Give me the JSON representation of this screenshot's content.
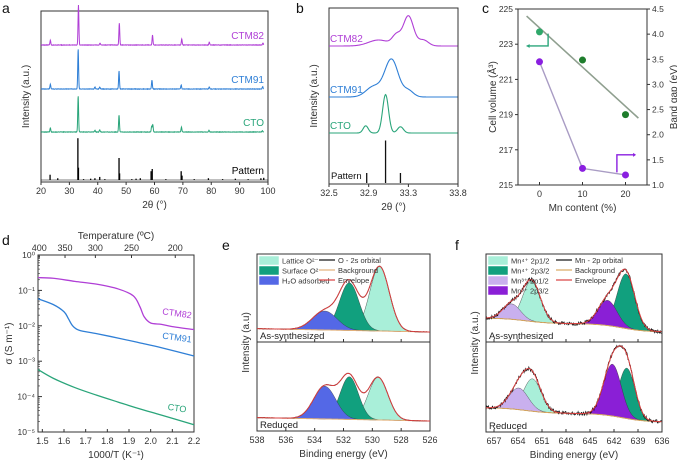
{
  "figure": {
    "panel_labels": [
      "a",
      "b",
      "c",
      "d",
      "e",
      "f"
    ]
  },
  "chart_data": [
    {
      "panel": "a",
      "type": "line",
      "title": "",
      "xlabel": "2θ (°)",
      "ylabel": "Intensity (a.u.)",
      "xlim": [
        20,
        100
      ],
      "xticks": [
        20,
        30,
        40,
        50,
        60,
        70,
        80,
        90,
        100
      ],
      "series": [
        {
          "name": "CTM82",
          "color": "#b03fd6",
          "offset": 3,
          "peaks": [
            [
              23.3,
              0.12
            ],
            [
              33.2,
              1.0
            ],
            [
              40.8,
              0.05
            ],
            [
              47.6,
              0.55
            ],
            [
              59.3,
              0.25
            ],
            [
              69.6,
              0.15
            ],
            [
              79.3,
              0.07
            ],
            [
              98.2,
              0.05
            ]
          ]
        },
        {
          "name": "CTM91",
          "color": "#2f7fd6",
          "offset": 2,
          "peaks": [
            [
              23.3,
              0.12
            ],
            [
              33.1,
              1.0
            ],
            [
              39.0,
              0.05
            ],
            [
              40.7,
              0.05
            ],
            [
              47.5,
              0.45
            ],
            [
              59.1,
              0.22
            ],
            [
              69.4,
              0.1
            ],
            [
              79.3,
              0.05
            ],
            [
              98.1,
              0.06
            ]
          ]
        },
        {
          "name": "CTO",
          "color": "#2aa57a",
          "offset": 1,
          "peaks": [
            [
              23.3,
              0.1
            ],
            [
              33.1,
              0.9
            ],
            [
              39.0,
              0.04
            ],
            [
              40.7,
              0.05
            ],
            [
              47.5,
              0.42
            ],
            [
              59.0,
              0.14
            ],
            [
              59.4,
              0.18
            ],
            [
              69.5,
              0.12
            ],
            [
              79.2,
              0.04
            ],
            [
              98.0,
              0.03
            ]
          ]
        },
        {
          "name": "Pattern",
          "color": "#000000",
          "offset": 0,
          "sticks": [
            [
              23.2,
              0.12
            ],
            [
              25.9,
              0.04
            ],
            [
              33.0,
              0.95
            ],
            [
              33.2,
              0.28
            ],
            [
              35.0,
              0.02
            ],
            [
              37.5,
              0.03
            ],
            [
              39.0,
              0.04
            ],
            [
              40.7,
              0.07
            ],
            [
              42.5,
              0.02
            ],
            [
              47.5,
              0.5
            ],
            [
              47.7,
              0.15
            ],
            [
              52.0,
              0.02
            ],
            [
              53.5,
              0.03
            ],
            [
              55.0,
              0.04
            ],
            [
              58.8,
              0.2
            ],
            [
              59.2,
              0.25
            ],
            [
              64.0,
              0.02
            ],
            [
              69.4,
              0.2
            ],
            [
              69.7,
              0.1
            ],
            [
              74.0,
              0.02
            ],
            [
              79.0,
              0.04
            ],
            [
              84.0,
              0.02
            ],
            [
              88.5,
              0.03
            ],
            [
              93.0,
              0.02
            ],
            [
              97.5,
              0.04
            ],
            [
              98.5,
              0.05
            ]
          ]
        }
      ]
    },
    {
      "panel": "b",
      "type": "line",
      "title": "",
      "xlabel": "2θ (°)",
      "ylabel": "Intensity (a.u.)",
      "xlim": [
        32.5,
        33.8
      ],
      "xticks": [
        "32.5",
        "32.9",
        "33.3",
        "33.8"
      ],
      "xtick_values": [
        32.5,
        32.9,
        33.3,
        33.8
      ],
      "series": [
        {
          "name": "CTM82",
          "color": "#b03fd6",
          "offset": 3,
          "peaks": [
            [
              33.0,
              0.12,
              0.12
            ],
            [
              33.18,
              0.2,
              0.05
            ],
            [
              33.3,
              0.6,
              0.06
            ],
            [
              33.45,
              0.12,
              0.06
            ]
          ]
        },
        {
          "name": "CTM91",
          "color": "#2f7fd6",
          "offset": 2,
          "peaks": [
            [
              32.95,
              0.2,
              0.09
            ],
            [
              33.13,
              0.72,
              0.08
            ],
            [
              33.3,
              0.12,
              0.06
            ]
          ]
        },
        {
          "name": "CTO",
          "color": "#2aa57a",
          "offset": 1,
          "peaks": [
            [
              32.87,
              0.15,
              0.03
            ],
            [
              33.07,
              0.8,
              0.035
            ],
            [
              33.22,
              0.13,
              0.035
            ]
          ]
        },
        {
          "name": "Pattern",
          "color": "#000000",
          "offset": 0,
          "sticks": [
            [
              32.88,
              0.2
            ],
            [
              33.07,
              0.85
            ],
            [
              33.22,
              0.2
            ]
          ]
        }
      ]
    },
    {
      "panel": "c",
      "type": "scatter",
      "title": "",
      "xlabel": "Mn content (%)",
      "ylabel": "Cell volume (Å³)",
      "y2label": "Band gap (eV)",
      "xlim": [
        -5,
        25
      ],
      "xticks": [
        0,
        10,
        20
      ],
      "ylim": [
        215,
        225
      ],
      "yticks": [
        215,
        217,
        219,
        221,
        223,
        225
      ],
      "y2lim": [
        1.0,
        4.5
      ],
      "y2ticks": [
        "1.0",
        "1.5",
        "2.0",
        "2.5",
        "3.0",
        "3.5",
        "4.0",
        "4.5"
      ],
      "series": [
        {
          "name": "Cell volume",
          "axis": "left",
          "color": "#1f7a2e",
          "x": [
            0,
            10,
            20
          ],
          "y": [
            223.7,
            222.1,
            219.0
          ],
          "fit_line": {
            "x": [
              -3,
              23
            ],
            "y": [
              224.6,
              218.8
            ],
            "color": "#8f9f8f"
          }
        },
        {
          "name": "Band gap",
          "axis": "right",
          "color": "#8a1fe0",
          "x": [
            0,
            10,
            20
          ],
          "y": [
            3.45,
            1.33,
            1.2
          ],
          "line_color": "#a99cc4"
        }
      ],
      "annotations": [
        {
          "type": "arrow-left",
          "color": "#2aa57a",
          "meaning": "cell volume axis"
        },
        {
          "type": "arrow-right",
          "color": "#8a1fe0",
          "meaning": "band gap axis"
        }
      ]
    },
    {
      "panel": "d",
      "type": "line",
      "title": "",
      "xlabel": "1000/T (K⁻¹)",
      "ylabel": "σ (S m⁻¹)",
      "x2label": "Temperature (ºC)",
      "xlim": [
        1.48,
        2.2
      ],
      "xticks": [
        "1.5",
        "1.6",
        "1.7",
        "1.8",
        "1.9",
        "2.0",
        "2.1",
        "2.2"
      ],
      "x2ticks": [
        400,
        350,
        300,
        250,
        200
      ],
      "yscale": "log",
      "ylim": [
        1e-05,
        1
      ],
      "yticks": [
        "10⁰",
        "10⁻¹",
        "10⁻²",
        "10⁻³",
        "10⁻⁴",
        "10⁻⁵"
      ],
      "series": [
        {
          "name": "CTM82",
          "color": "#b03fd6",
          "x": [
            1.48,
            1.55,
            1.65,
            1.75,
            1.85,
            1.92,
            1.95,
            1.97,
            2.0,
            2.05,
            2.1,
            2.2
          ],
          "y": [
            0.23,
            0.22,
            0.18,
            0.15,
            0.11,
            0.07,
            0.035,
            0.018,
            0.012,
            0.011,
            0.0095,
            0.0078
          ]
        },
        {
          "name": "CTM91",
          "color": "#2f7fd6",
          "x": [
            1.48,
            1.55,
            1.6,
            1.62,
            1.64,
            1.67,
            1.75,
            1.85,
            1.95,
            2.05,
            2.2
          ],
          "y": [
            0.058,
            0.04,
            0.025,
            0.016,
            0.01,
            0.0075,
            0.006,
            0.0045,
            0.0033,
            0.0024,
            0.0014
          ]
        },
        {
          "name": "CTO",
          "color": "#2aa57a",
          "x": [
            1.48,
            1.55,
            1.65,
            1.75,
            1.85,
            1.95,
            2.05,
            2.2
          ],
          "y": [
            0.00058,
            0.00033,
            0.00018,
            0.00011,
            7e-05,
            4.5e-05,
            3e-05,
            1.6e-05
          ]
        }
      ]
    },
    {
      "panel": "e",
      "type": "area",
      "title": "",
      "xlabel": "Binding energy (eV)",
      "ylabel": "Intensity (a.u)",
      "xlim": [
        538,
        526
      ],
      "xticks": [
        538,
        536,
        534,
        532,
        530,
        528,
        526
      ],
      "legend": {
        "placement": "top-left",
        "entries": [
          {
            "label": "Lattice O²⁻",
            "kind": "fill",
            "color": "#a9efd9"
          },
          {
            "label": "Surface O²⁻",
            "kind": "fill",
            "color": "#11a07e"
          },
          {
            "label": "H₂O adsorbed",
            "kind": "fill",
            "color": "#5468e6"
          },
          {
            "label": "O - 2s orbital",
            "kind": "line",
            "color": "#111111"
          },
          {
            "label": "Background",
            "kind": "line",
            "color": "#e2b07a"
          },
          {
            "label": "Envelope",
            "kind": "line",
            "color": "#d84040"
          }
        ]
      },
      "subplots": [
        {
          "label": "As-synthesized",
          "components": [
            {
              "name": "Lattice O²⁻",
              "center": 529.5,
              "height": 0.92,
              "fwhm": 1.6
            },
            {
              "name": "Surface O²⁻",
              "center": 531.6,
              "height": 0.68,
              "fwhm": 1.6
            },
            {
              "name": "H₂O adsorbed",
              "center": 533.3,
              "height": 0.27,
              "fwhm": 2.0
            }
          ]
        },
        {
          "label": "Reduced",
          "components": [
            {
              "name": "Lattice O²⁻",
              "center": 529.6,
              "height": 0.6,
              "fwhm": 1.6
            },
            {
              "name": "Surface O²⁻",
              "center": 531.6,
              "height": 0.6,
              "fwhm": 1.5
            },
            {
              "name": "H₂O adsorbed",
              "center": 533.3,
              "height": 0.46,
              "fwhm": 1.8
            }
          ]
        }
      ]
    },
    {
      "panel": "f",
      "type": "area",
      "title": "",
      "xlabel": "Binding energy (eV)",
      "ylabel": "Intensity (a.u.)",
      "xlim": [
        658,
        636
      ],
      "xticks": [
        657,
        654,
        651,
        648,
        645,
        642,
        639,
        636
      ],
      "legend": {
        "placement": "top-left",
        "entries": [
          {
            "label": "Mn⁴⁺ 2p1/2",
            "kind": "fill",
            "color": "#a9efd9"
          },
          {
            "label": "Mn⁴⁺ 2p3/2",
            "kind": "fill",
            "color": "#11a07e"
          },
          {
            "label": "Mn³⁺ 2p1/2",
            "kind": "fill",
            "color": "#c9b0ee"
          },
          {
            "label": "Mn³⁺ 2p3/2",
            "kind": "fill",
            "color": "#8a1fd6"
          },
          {
            "label": "Mn - 2p orbital",
            "kind": "line",
            "color": "#111111"
          },
          {
            "label": "Background",
            "kind": "line",
            "color": "#d9a860"
          },
          {
            "label": "Envelope",
            "kind": "line",
            "color": "#d84040"
          }
        ]
      },
      "subplots": [
        {
          "label": "As-synthesized",
          "components": [
            {
              "name": "Mn⁴⁺ 2p1/2",
              "center": 652.3,
              "height": 0.58,
              "fwhm": 2.6
            },
            {
              "name": "Mn³⁺ 2p1/2",
              "center": 654.8,
              "height": 0.22,
              "fwhm": 2.6
            },
            {
              "name": "Mn⁴⁺ 2p3/2",
              "center": 640.5,
              "height": 0.78,
              "fwhm": 2.6
            },
            {
              "name": "Mn³⁺ 2p3/2",
              "center": 642.8,
              "height": 0.36,
              "fwhm": 2.8
            }
          ]
        },
        {
          "label": "Reduced",
          "components": [
            {
              "name": "Mn⁴⁺ 2p1/2",
              "center": 652.2,
              "height": 0.45,
              "fwhm": 2.6
            },
            {
              "name": "Mn³⁺ 2p1/2",
              "center": 653.9,
              "height": 0.3,
              "fwhm": 2.8
            },
            {
              "name": "Mn⁴⁺ 2p3/2",
              "center": 640.4,
              "height": 0.7,
              "fwhm": 2.4
            },
            {
              "name": "Mn³⁺ 2p3/2",
              "center": 642.2,
              "height": 0.72,
              "fwhm": 2.6
            }
          ]
        }
      ]
    }
  ]
}
